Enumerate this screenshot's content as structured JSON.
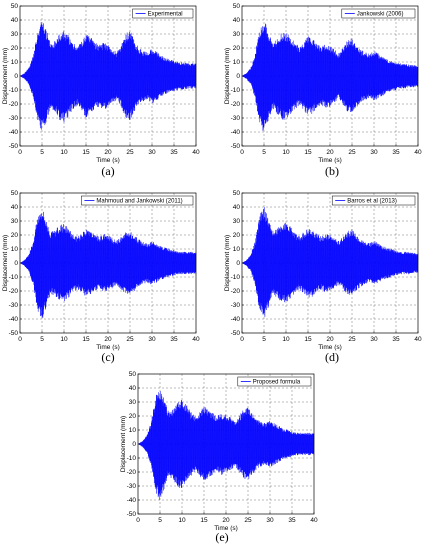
{
  "figure": {
    "panels": [
      {
        "caption": "(a)",
        "legend": "Experimental"
      },
      {
        "caption": "(b)",
        "legend": "Jankowski (2006)"
      },
      {
        "caption": "(c)",
        "legend": "Mahmoud and Jankowski (2011)"
      },
      {
        "caption": "(d)",
        "legend": "Barros et al (2013)"
      },
      {
        "caption": "(e)",
        "legend": "Proposed formula"
      }
    ]
  },
  "chart_data": [
    {
      "type": "line",
      "title": "",
      "xlabel": "Time (s)",
      "ylabel": "Displacement (mm)",
      "xlim": [
        0,
        40
      ],
      "ylim": [
        -50,
        50
      ],
      "xticks": [
        0,
        5,
        10,
        15,
        20,
        25,
        30,
        35,
        40
      ],
      "yticks": [
        -50,
        -40,
        -30,
        -20,
        -10,
        0,
        10,
        20,
        30,
        40,
        50
      ],
      "grid": true,
      "legend_position": "top-right",
      "series": [
        {
          "name": "Experimental",
          "color": "#0000ff",
          "envelope": {
            "t": [
              0,
              1,
              2,
              3,
              4,
              5,
              6,
              7,
              8,
              9,
              10,
              11,
              12,
              13,
              14,
              15,
              16,
              17,
              18,
              19,
              20,
              21,
              22,
              23,
              24,
              25,
              26,
              27,
              28,
              29,
              30,
              31,
              32,
              33,
              34,
              35,
              36,
              37,
              38,
              39,
              40
            ],
            "amplitude": [
              0,
              2,
              6,
              15,
              32,
              40,
              33,
              23,
              26,
              32,
              33,
              29,
              24,
              21,
              25,
              30,
              28,
              24,
              22,
              24,
              23,
              20,
              17,
              22,
              30,
              33,
              26,
              20,
              18,
              17,
              20,
              18,
              15,
              13,
              12,
              11,
              10,
              10,
              9,
              9,
              9
            ]
          }
        }
      ]
    },
    {
      "type": "line",
      "title": "",
      "xlabel": "Time (s)",
      "ylabel": "Displacement (mm)",
      "xlim": [
        0,
        40
      ],
      "ylim": [
        -50,
        50
      ],
      "xticks": [
        0,
        5,
        10,
        15,
        20,
        25,
        30,
        35,
        40
      ],
      "yticks": [
        -50,
        -40,
        -30,
        -20,
        -10,
        0,
        10,
        20,
        30,
        40,
        50
      ],
      "grid": true,
      "legend_position": "top-right",
      "series": [
        {
          "name": "Jankowski (2006)",
          "color": "#0000ff",
          "envelope": {
            "t": [
              0,
              1,
              2,
              3,
              4,
              5,
              6,
              7,
              8,
              9,
              10,
              11,
              12,
              13,
              14,
              15,
              16,
              17,
              18,
              19,
              20,
              21,
              22,
              23,
              24,
              25,
              26,
              27,
              28,
              29,
              30,
              31,
              32,
              33,
              34,
              35,
              36,
              37,
              38,
              39,
              40
            ],
            "amplitude": [
              0,
              2,
              6,
              16,
              34,
              41,
              32,
              24,
              27,
              31,
              32,
              28,
              24,
              21,
              24,
              29,
              27,
              23,
              21,
              23,
              22,
              19,
              16,
              21,
              26,
              27,
              23,
              19,
              17,
              16,
              18,
              16,
              14,
              12,
              11,
              10,
              9,
              9,
              8,
              8,
              8
            ]
          }
        }
      ]
    },
    {
      "type": "line",
      "title": "",
      "xlabel": "Time (s)",
      "ylabel": "Displacement (mm)",
      "xlim": [
        0,
        40
      ],
      "ylim": [
        -50,
        50
      ],
      "xticks": [
        0,
        5,
        10,
        15,
        20,
        25,
        30,
        35,
        40
      ],
      "yticks": [
        -50,
        -40,
        -30,
        -20,
        -10,
        0,
        10,
        20,
        30,
        40,
        50
      ],
      "grid": true,
      "legend_position": "top-right",
      "series": [
        {
          "name": "Mahmoud and Jankowski (2011)",
          "color": "#0000ff",
          "envelope": {
            "t": [
              0,
              1,
              2,
              3,
              4,
              5,
              6,
              7,
              8,
              9,
              10,
              11,
              12,
              13,
              14,
              15,
              16,
              17,
              18,
              19,
              20,
              21,
              22,
              23,
              24,
              25,
              26,
              27,
              28,
              29,
              30,
              31,
              32,
              33,
              34,
              35,
              36,
              37,
              38,
              39,
              40
            ],
            "amplitude": [
              0,
              2,
              6,
              16,
              34,
              41,
              31,
              22,
              24,
              27,
              28,
              25,
              21,
              19,
              21,
              24,
              23,
              20,
              19,
              21,
              20,
              18,
              16,
              19,
              22,
              23,
              20,
              17,
              15,
              14,
              16,
              14,
              12,
              11,
              10,
              9,
              8,
              8,
              8,
              8,
              8
            ]
          }
        }
      ]
    },
    {
      "type": "line",
      "title": "",
      "xlabel": "Time (s)",
      "ylabel": "Displacement (mm)",
      "xlim": [
        0,
        40
      ],
      "ylim": [
        -50,
        50
      ],
      "xticks": [
        0,
        5,
        10,
        15,
        20,
        25,
        30,
        35,
        40
      ],
      "yticks": [
        -50,
        -40,
        -30,
        -20,
        -10,
        0,
        10,
        20,
        30,
        40,
        50
      ],
      "grid": true,
      "legend_position": "top-right",
      "series": [
        {
          "name": "Barros et al (2013)",
          "color": "#0000ff",
          "envelope": {
            "t": [
              0,
              1,
              2,
              3,
              4,
              5,
              6,
              7,
              8,
              9,
              10,
              11,
              12,
              13,
              14,
              15,
              16,
              17,
              18,
              19,
              20,
              21,
              22,
              23,
              24,
              25,
              26,
              27,
              28,
              29,
              30,
              31,
              32,
              33,
              34,
              35,
              36,
              37,
              38,
              39,
              40
            ],
            "amplitude": [
              0,
              2,
              6,
              16,
              34,
              41,
              32,
              23,
              25,
              28,
              29,
              26,
              22,
              19,
              22,
              25,
              24,
              21,
              19,
              21,
              20,
              18,
              16,
              19,
              23,
              24,
              20,
              17,
              15,
              14,
              16,
              14,
              12,
              11,
              10,
              9,
              8,
              8,
              8,
              7,
              7
            ]
          }
        }
      ]
    },
    {
      "type": "line",
      "title": "",
      "xlabel": "Time (s)",
      "ylabel": "Displacement (mm)",
      "xlim": [
        0,
        40
      ],
      "ylim": [
        -50,
        50
      ],
      "xticks": [
        0,
        5,
        10,
        15,
        20,
        25,
        30,
        35,
        40
      ],
      "yticks": [
        -50,
        -40,
        -30,
        -20,
        -10,
        0,
        10,
        20,
        30,
        40,
        50
      ],
      "grid": true,
      "legend_position": "top-right",
      "series": [
        {
          "name": "Proposed formula",
          "color": "#0000ff",
          "envelope": {
            "t": [
              0,
              1,
              2,
              3,
              4,
              5,
              6,
              7,
              8,
              9,
              10,
              11,
              12,
              13,
              14,
              15,
              16,
              17,
              18,
              19,
              20,
              21,
              22,
              23,
              24,
              25,
              26,
              27,
              28,
              29,
              30,
              31,
              32,
              33,
              34,
              35,
              36,
              37,
              38,
              39,
              40
            ],
            "amplitude": [
              0,
              2,
              6,
              16,
              34,
              41,
              32,
              23,
              26,
              31,
              32,
              28,
              23,
              20,
              23,
              27,
              25,
              22,
              20,
              22,
              21,
              19,
              16,
              20,
              25,
              26,
              22,
              18,
              16,
              15,
              17,
              15,
              13,
              11,
              10,
              9,
              8,
              8,
              8,
              8,
              8
            ]
          }
        }
      ]
    }
  ]
}
